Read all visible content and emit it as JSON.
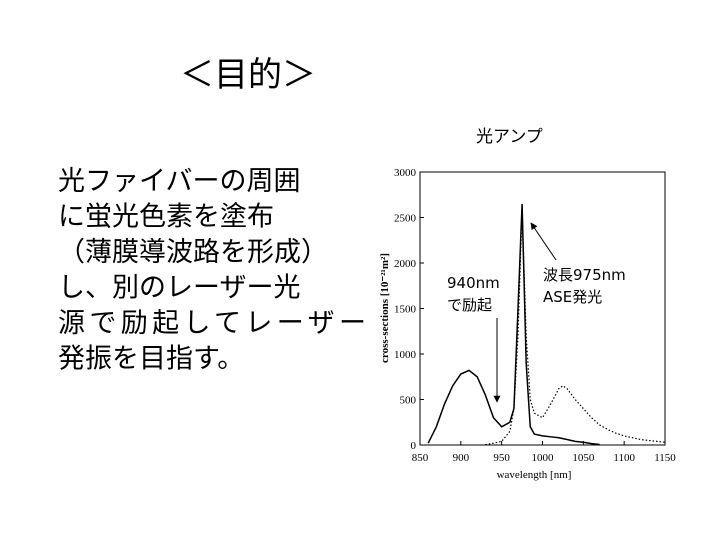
{
  "title": "＜目的＞",
  "body": [
    "光ファイバーの周囲",
    "に蛍光色素を塗布",
    "（薄膜導波路を形成）",
    "し、別のレーザー光",
    "源で励起してレーザー",
    "発振を目指す。"
  ],
  "chart_data": {
    "type": "line",
    "title": "光アンプ",
    "x_label": "wavelength [nm]",
    "y_label": "cross-sections [10⁻²¹m²]",
    "x": [
      860,
      870,
      880,
      890,
      900,
      910,
      920,
      930,
      940,
      950,
      960,
      965,
      970,
      975,
      980,
      985,
      990,
      1000,
      1010,
      1020,
      1025,
      1030,
      1040,
      1050,
      1060,
      1070,
      1080,
      1090,
      1100,
      1110,
      1120,
      1130,
      1140,
      1150
    ],
    "series": [
      {
        "color": "#000000",
        "dash": "solid",
        "values": [
          20,
          200,
          450,
          650,
          780,
          820,
          750,
          550,
          300,
          200,
          250,
          400,
          1500,
          2650,
          900,
          200,
          120,
          100,
          90,
          80,
          70,
          60,
          40,
          30,
          15,
          5,
          null,
          null,
          null,
          null,
          null,
          null,
          null,
          null
        ]
      },
      {
        "color": "#000000",
        "dash": "dotted",
        "values": [
          null,
          null,
          null,
          null,
          null,
          null,
          null,
          5,
          20,
          40,
          150,
          400,
          1200,
          2600,
          1200,
          500,
          350,
          300,
          450,
          620,
          650,
          620,
          500,
          400,
          300,
          220,
          170,
          130,
          100,
          80,
          60,
          50,
          40,
          30
        ]
      }
    ],
    "xlim": [
      850,
      1150
    ],
    "xticks": [
      850,
      900,
      950,
      1000,
      1050,
      1100,
      1150
    ],
    "ylim": [
      0,
      3000
    ],
    "yticks": [
      0,
      500,
      1000,
      1500,
      2000,
      2500,
      3000
    ],
    "annotations": [
      [
        "940nm",
        "で励起"
      ],
      [
        "波長975nm",
        "ASE発光"
      ]
    ]
  }
}
